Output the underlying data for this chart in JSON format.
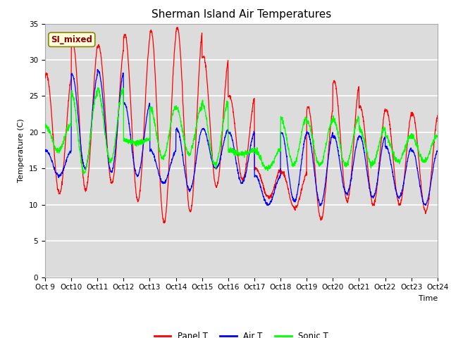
{
  "title": "Sherman Island Air Temperatures",
  "xlabel": "Time",
  "ylabel": "Temperature (C)",
  "xlim": [
    0,
    15
  ],
  "ylim": [
    0,
    35
  ],
  "yticks": [
    0,
    5,
    10,
    15,
    20,
    25,
    30,
    35
  ],
  "xtick_labels": [
    "Oct 9",
    "Oct 10",
    "Oct 11",
    "Oct 12",
    "Oct 13",
    "Oct 14",
    "Oct 15",
    "Oct 16",
    "Oct 17",
    "Oct 18",
    "Oct 19",
    "Oct 20",
    "Oct 21",
    "Oct 22",
    "Oct 23",
    "Oct 24"
  ],
  "legend_labels": [
    "Panel T",
    "Air T",
    "Sonic T"
  ],
  "legend_colors": [
    "red",
    "blue",
    "lime"
  ],
  "annotation_text": "SI_mixed",
  "annotation_color": "#8B0000",
  "annotation_bg": "#FFFFE0",
  "plot_bg": "#DCDCDC",
  "grid_color": "white",
  "title_fontsize": 11,
  "label_fontsize": 8,
  "tick_fontsize": 7.5,
  "panel_peaks": [
    28.0,
    32.5,
    32.0,
    33.5,
    34.0,
    34.5,
    30.5,
    25.0,
    15.0,
    14.5,
    23.5,
    27.0,
    23.5,
    23.0,
    22.5
  ],
  "panel_mins": [
    11.5,
    12.0,
    13.0,
    10.5,
    7.5,
    9.0,
    12.5,
    13.5,
    11.0,
    9.5,
    8.0,
    10.5,
    10.0,
    10.0,
    9.0
  ],
  "air_peaks": [
    17.5,
    28.0,
    28.5,
    24.0,
    17.5,
    20.5,
    20.5,
    20.0,
    14.0,
    20.0,
    20.0,
    19.5,
    19.5,
    18.0,
    17.5
  ],
  "air_mins": [
    14.0,
    15.0,
    14.5,
    14.0,
    13.0,
    12.0,
    15.0,
    13.0,
    10.0,
    10.5,
    10.0,
    11.5,
    11.0,
    11.0,
    10.0
  ],
  "sonic_peaks": [
    21.0,
    25.5,
    26.0,
    19.0,
    23.5,
    23.5,
    24.0,
    17.5,
    17.5,
    22.0,
    21.5,
    22.0,
    20.5,
    19.5,
    19.5
  ],
  "sonic_mins": [
    17.5,
    14.5,
    16.0,
    18.5,
    16.5,
    17.0,
    15.5,
    17.0,
    15.0,
    15.5,
    15.5,
    15.5,
    15.5,
    16.0,
    16.0
  ],
  "panel_phase": 0.55,
  "air_phase": 0.53,
  "sonic_phase": 0.5
}
